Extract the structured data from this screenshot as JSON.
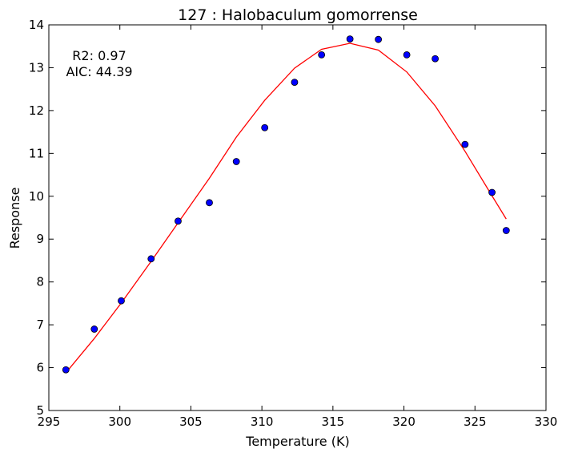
{
  "chart_data": {
    "type": "scatter",
    "title": "127 : Halobaculum gomorrense",
    "xlabel": "Temperature (K)",
    "ylabel": "Response",
    "xlim": [
      295,
      330
    ],
    "ylim": [
      5,
      14
    ],
    "xticks": [
      295,
      300,
      305,
      310,
      315,
      320,
      325,
      330
    ],
    "yticks": [
      5,
      6,
      7,
      8,
      9,
      10,
      11,
      12,
      13,
      14
    ],
    "grid": false,
    "annotations": [
      "R2: 0.97",
      "AIC: 44.39"
    ],
    "colors": {
      "points": "#0000ff",
      "fit": "#ff0000"
    },
    "series": [
      {
        "kind": "points",
        "x": [
          296.2,
          298.2,
          300.1,
          302.2,
          304.1,
          306.3,
          308.2,
          310.2,
          312.3,
          314.2,
          316.2,
          318.2,
          320.2,
          322.2,
          324.3,
          326.2,
          327.2
        ],
        "y": [
          5.95,
          6.9,
          7.56,
          8.54,
          9.42,
          9.85,
          10.81,
          11.6,
          12.66,
          13.3,
          13.67,
          13.66,
          13.3,
          13.21,
          11.21,
          10.09,
          9.2
        ]
      },
      {
        "kind": "fit",
        "x": [
          296.2,
          298.2,
          300.1,
          302.2,
          304.1,
          306.3,
          308.2,
          310.2,
          312.3,
          314.2,
          316.2,
          318.2,
          320.2,
          322.2,
          324.3,
          326.2,
          327.2
        ],
        "y": [
          5.88,
          6.68,
          7.51,
          8.48,
          9.38,
          10.42,
          11.38,
          12.24,
          12.99,
          13.43,
          13.57,
          13.41,
          12.9,
          12.11,
          11.05,
          10.01,
          9.47
        ]
      }
    ]
  }
}
